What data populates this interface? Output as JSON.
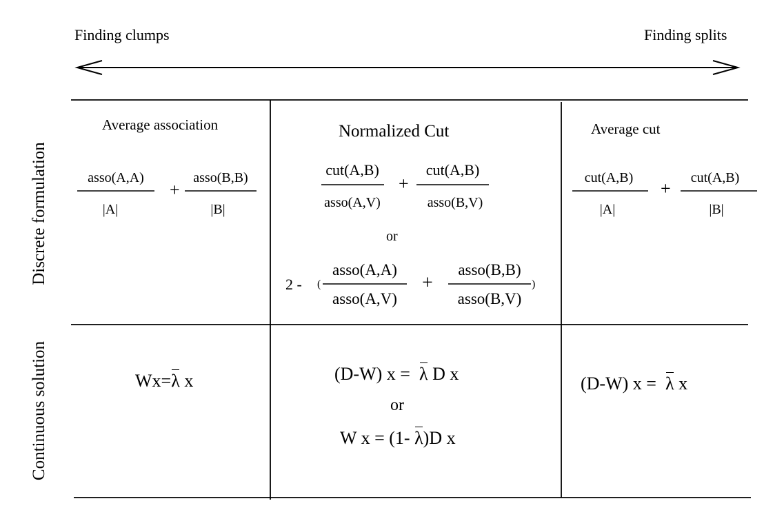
{
  "header": {
    "left_label": "Finding clumps",
    "right_label": "Finding splits"
  },
  "rows": {
    "discrete": "Discrete formulation",
    "continuous": "Continuous solution"
  },
  "columns": {
    "average_association": {
      "title": "Average association",
      "num1": "asso(A,A)",
      "den1": "|A|",
      "plus": "+",
      "num2": "asso(B,B)",
      "den2": "|B|",
      "solution": {
        "left": "Wx=",
        "lambda": "λ",
        "right": "x"
      }
    },
    "normalized_cut": {
      "title": "Normalized Cut",
      "num1": "cut(A,B)",
      "den1": "asso(A,V)",
      "plus": "+",
      "num2": "cut(A,B)",
      "den2": "asso(B,V)",
      "or": "or",
      "prefix": "2 -",
      "open_paren": "(",
      "close_paren": ")",
      "num3": "asso(A,A)",
      "den3": "asso(A,V)",
      "plus2": "+",
      "num4": "asso(B,B)",
      "den4": "asso(B,V)",
      "solution1": {
        "left": "(D-W) x =",
        "lambda": "λ",
        "right": "D x"
      },
      "solution_or": "or",
      "solution2": {
        "left": "W x = (1-",
        "lambda": "λ",
        "right": ")D x"
      }
    },
    "average_cut": {
      "title": "Average cut",
      "num1": "cut(A,B)",
      "den1": "|A|",
      "plus": "+",
      "num2": "cut(A,B)",
      "den2": "|B|",
      "solution": {
        "left": "(D-W) x =",
        "lambda": "λ",
        "right": "x"
      }
    }
  }
}
